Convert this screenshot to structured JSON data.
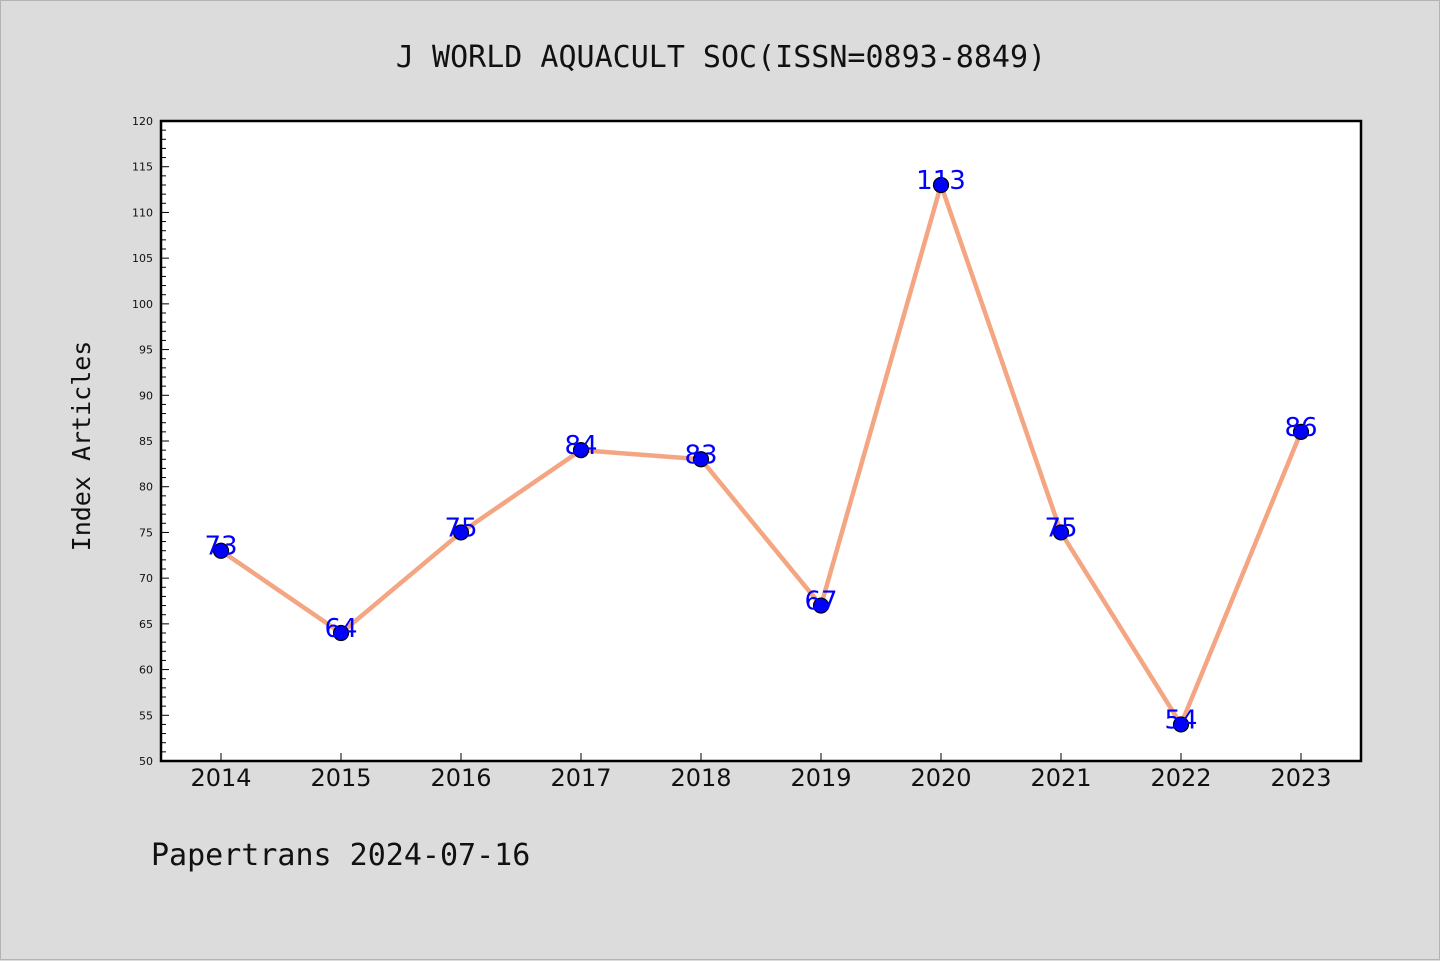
{
  "colors": {
    "background": "#dcdcdc",
    "plot_background": "#ffffff",
    "axis": "#000000",
    "line": "#f4a582",
    "marker": "#0000ff",
    "marker_edge": "#000000",
    "data_label": "#0000ff"
  },
  "footer": "Papertrans 2024-07-16",
  "chart_data": {
    "type": "line",
    "title": "J WORLD AQUACULT SOC(ISSN=0893-8849)",
    "xlabel": "",
    "ylabel": "Index Articles",
    "categories": [
      "2014",
      "2015",
      "2016",
      "2017",
      "2018",
      "2019",
      "2020",
      "2021",
      "2022",
      "2023"
    ],
    "series": [
      {
        "values": [
          73,
          64,
          75,
          84,
          83,
          67,
          113,
          75,
          54,
          86
        ]
      }
    ],
    "data_labels": [
      "73",
      "64",
      "75",
      "84",
      "83",
      "67",
      "113",
      "75",
      "54",
      "86"
    ],
    "ylim": [
      50,
      120
    ],
    "y_major_step": 5,
    "y_minor_step": 1,
    "y_tick_labels": [
      "50",
      "55",
      "60",
      "65",
      "70",
      "75",
      "80",
      "85",
      "90",
      "95",
      "100",
      "105",
      "110",
      "115",
      "120"
    ],
    "grid": false,
    "legend": "none"
  }
}
